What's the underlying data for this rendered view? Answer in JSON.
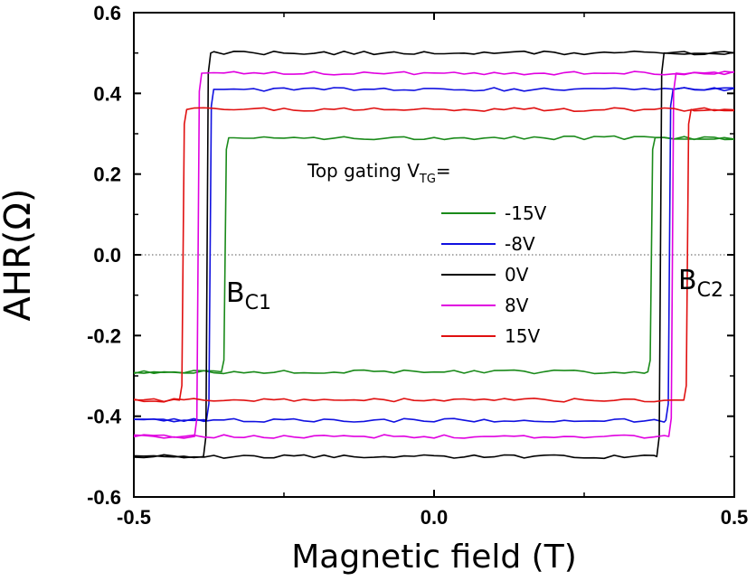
{
  "chart_data": {
    "type": "line",
    "title": "",
    "xlabel": "Magnetic field (T)",
    "ylabel": "AHR(Ω)",
    "xlim": [
      -0.5,
      0.5
    ],
    "ylim": [
      -0.6,
      0.6
    ],
    "x_ticks": [
      -0.5,
      0.0,
      0.5
    ],
    "x_tick_labels": [
      "-0.5",
      "0.0",
      "0.5"
    ],
    "y_ticks": [
      0.6,
      0.4,
      0.2,
      0.0,
      -0.2,
      -0.4,
      -0.6
    ],
    "y_tick_labels": [
      "0.6",
      "0.4",
      "0.2",
      "0.0",
      "-0.2",
      "-0.4",
      "-0.6"
    ],
    "grid": false,
    "zero_line": true,
    "legend": {
      "title_prefix": "Top gating ",
      "title_v": "V",
      "title_sub": "TG",
      "title_suffix": "=",
      "location": "center-right"
    },
    "annotations": [
      {
        "main": "B",
        "sub": "C1"
      },
      {
        "main": "B",
        "sub": "C2"
      }
    ],
    "series": [
      {
        "name": "-15V",
        "color": "#1a8a1a",
        "saturation": 0.29,
        "bc1": -0.35,
        "bc2": 0.36
      },
      {
        "name": "-8V",
        "color": "#1010e0",
        "saturation": 0.41,
        "bc1": -0.375,
        "bc2": 0.39
      },
      {
        "name": "0V",
        "color": "#000000",
        "saturation": 0.5,
        "bc1": -0.38,
        "bc2": 0.375
      },
      {
        "name": "8V",
        "color": "#e000e0",
        "saturation": 0.45,
        "bc1": -0.395,
        "bc2": 0.395
      },
      {
        "name": "15V",
        "color": "#e01010",
        "saturation": 0.36,
        "bc1": -0.42,
        "bc2": 0.42
      }
    ]
  }
}
